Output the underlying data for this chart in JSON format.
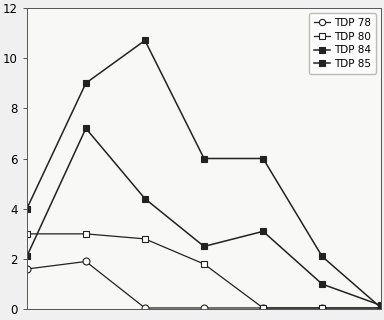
{
  "series": [
    {
      "label": "TDP 78",
      "x": [
        0,
        100,
        200,
        300,
        400,
        500,
        600
      ],
      "y": [
        1.6,
        1.9,
        0.05,
        0.05,
        0.05,
        0.05,
        0.05
      ],
      "marker": "o",
      "markerfacecolor": "white",
      "color": "#222222",
      "linewidth": 0.9
    },
    {
      "label": "TDP 80",
      "x": [
        0,
        100,
        200,
        300,
        400,
        500,
        600
      ],
      "y": [
        3.0,
        3.0,
        2.8,
        1.8,
        0.05,
        0.05,
        0.05
      ],
      "marker": "s",
      "markerfacecolor": "white",
      "color": "#222222",
      "linewidth": 0.9
    },
    {
      "label": "TDP 84",
      "x": [
        0,
        100,
        200,
        300,
        400,
        500,
        600
      ],
      "y": [
        4.0,
        9.0,
        10.7,
        6.0,
        6.0,
        2.1,
        0.05
      ],
      "marker": "s",
      "markerfacecolor": "#222222",
      "color": "#222222",
      "linewidth": 1.1
    },
    {
      "label": "TDP 85",
      "x": [
        0,
        100,
        200,
        300,
        400,
        500,
        600
      ],
      "y": [
        2.1,
        7.2,
        4.4,
        2.5,
        3.1,
        1.0,
        0.15
      ],
      "marker": "s",
      "markerfacecolor": "#222222",
      "color": "#222222",
      "linewidth": 1.1
    }
  ],
  "xlim": [
    0,
    600
  ],
  "ylim": [
    0,
    12
  ],
  "yticks": [
    0,
    2,
    4,
    6,
    8,
    10,
    12
  ],
  "background_color": "#f0f0f0",
  "plot_bg": "#f8f8f6",
  "legend_loc": "upper right",
  "markersize": 5
}
